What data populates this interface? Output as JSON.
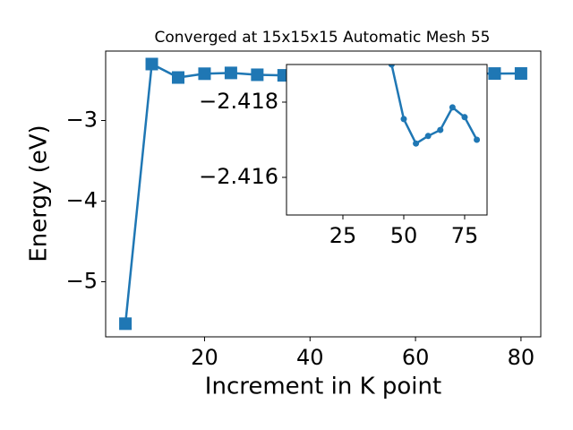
{
  "chart_data": [
    {
      "type": "line",
      "title": "Converged at 15x15x15 Automatic Mesh 55",
      "x_label": "Increment in K point",
      "y_label": "Energy (eV)",
      "x": [
        5,
        10,
        15,
        20,
        25,
        30,
        35,
        40,
        45,
        50,
        55,
        60,
        65,
        70,
        75,
        80
      ],
      "series": [
        {
          "color": "#1f77b4",
          "marker": "square",
          "values": [
            -5.52,
            -2.3,
            -2.467,
            -2.42,
            -2.41,
            -2.433,
            -2.44,
            -2.42,
            -2.419,
            -2.4176,
            -2.4169,
            -2.4171,
            -2.4173,
            -2.4179,
            -2.4176,
            -2.417
          ]
        }
      ],
      "xlim": [
        1.25,
        83.75
      ],
      "ylim": [
        -5.683,
        -2.139
      ],
      "xticks": [
        20,
        40,
        60,
        80
      ],
      "yticks": [
        {
          "value": -5,
          "label": "−5"
        },
        {
          "value": -4,
          "label": "−4"
        },
        {
          "value": -3,
          "label": "−3"
        }
      ]
    },
    {
      "type": "line",
      "x": [
        45,
        50,
        55,
        60,
        65,
        70,
        75,
        80
      ],
      "series": [
        {
          "color": "#1f77b4",
          "marker": "circle",
          "values": [
            -2.419,
            -2.41755,
            -2.4169,
            -2.4171,
            -2.41726,
            -2.41786,
            -2.4176,
            -2.417
          ]
        }
      ],
      "xlim": [
        1.84,
        84.2
      ],
      "ylim": [
        -2.415,
        -2.419
      ],
      "xticks": [
        25,
        50,
        75
      ],
      "yticks": [
        {
          "value": -2.418,
          "label": "−2.418"
        },
        {
          "value": -2.416,
          "label": "−2.416"
        }
      ]
    }
  ]
}
